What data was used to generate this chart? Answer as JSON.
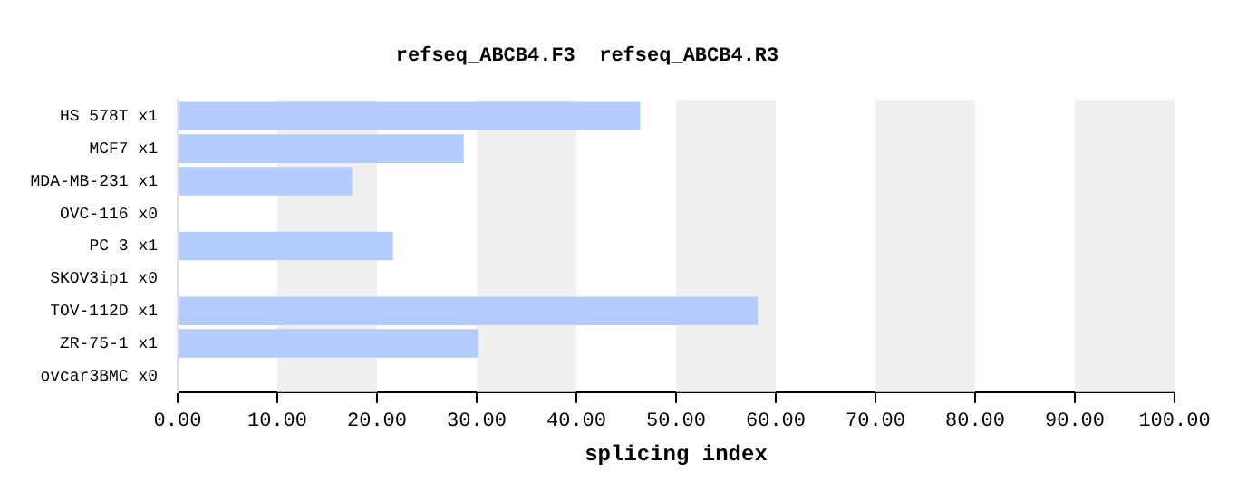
{
  "chart_data": {
    "type": "bar",
    "orientation": "horizontal",
    "title": "refseq_ABCB4.F3  refseq_ABCB4.R3",
    "xlabel": "splicing index",
    "categories": [
      "HS 578T x1",
      "MCF7 x1",
      "MDA-MB-231 x1",
      "OVC-116 x0",
      "PC 3 x1",
      "SKOV3ip1 x0",
      "TOV-112D x1",
      "ZR-75-1 x1",
      "ovcar3BMC x0"
    ],
    "values": [
      46.4,
      28.7,
      17.5,
      0,
      21.6,
      0,
      58.2,
      30.2,
      0
    ],
    "color": "#b3cbfd",
    "xlim": [
      0,
      100
    ],
    "xticks": [
      {
        "value": 0,
        "label": "0.00"
      },
      {
        "value": 10,
        "label": "10.00"
      },
      {
        "value": 20,
        "label": "20.00"
      },
      {
        "value": 30,
        "label": "30.00"
      },
      {
        "value": 40,
        "label": "40.00"
      },
      {
        "value": 50,
        "label": "50.00"
      },
      {
        "value": 60,
        "label": "60.00"
      },
      {
        "value": 70,
        "label": "70.00"
      },
      {
        "value": 80,
        "label": "80.00"
      },
      {
        "value": 90,
        "label": "90.00"
      },
      {
        "value": 100,
        "label": "100.00"
      }
    ],
    "bands": [
      {
        "axis": "x",
        "from": 10,
        "to": 20,
        "color": "#f0f0f0"
      },
      {
        "axis": "x",
        "from": 30,
        "to": 40,
        "color": "#f0f0f0"
      },
      {
        "axis": "x",
        "from": 50,
        "to": 60,
        "color": "#f0f0f0"
      },
      {
        "axis": "x",
        "from": 70,
        "to": 80,
        "color": "#f0f0f0"
      },
      {
        "axis": "x",
        "from": 90,
        "to": 100,
        "color": "#f0f0f0"
      }
    ],
    "grid": false,
    "legend": false
  }
}
